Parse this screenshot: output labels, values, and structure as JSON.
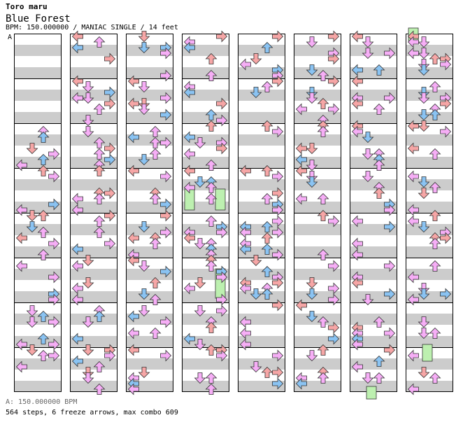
{
  "song": {
    "artist": "Toro maru",
    "title": "Blue Forest",
    "info": "BPM: 150.000000 / MANIAC SINGLE / 14 feet",
    "section_marker": "A"
  },
  "footer": {
    "bpm_line": "A: 150.000000 BPM",
    "stats_line": "564 steps, 6 freeze arrows, max combo 609"
  },
  "chart_data": {
    "type": "step-chart",
    "title": "Blue Forest",
    "artist": "Toro maru",
    "bpm": 150.0,
    "difficulty": "MANIAC SINGLE",
    "feet": 14,
    "columns": 8,
    "measures_per_column": 8,
    "lanes": [
      "left",
      "down",
      "up",
      "right"
    ],
    "steps": 564,
    "freeze_arrows": 6,
    "max_combo": 609
  },
  "colors": {
    "quarter": "#f6a6a6",
    "eighth": "#8ac3f2",
    "sixteenth": "#f6aef6",
    "freeze": "#bdf0b0",
    "stripe": "#cccccc"
  }
}
